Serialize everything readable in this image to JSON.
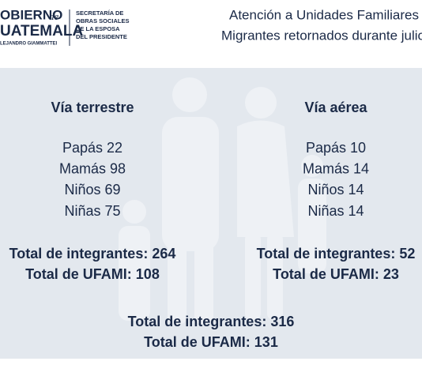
{
  "header": {
    "logo": {
      "line1": "OBIERNO",
      "line1_suffix": "de",
      "line2": "UATEMALA",
      "line3": "LEJANDRO GIAMMATTEI"
    },
    "secretaria": [
      "SECRETARÍA DE",
      "OBRAS SOCIALES",
      "DE LA ESPOSA",
      "DEL PRESIDENTE"
    ],
    "title": [
      "Atención a Unidades Familiares",
      "Migrantes retornados durante julio"
    ]
  },
  "sections": [
    {
      "heading": "Vía terrestre",
      "items": [
        "Papás 22",
        "Mamás 98",
        "Niños 69",
        "Niñas 75"
      ],
      "totals": [
        "Total de integrantes: 264",
        "Total de UFAMI: 108"
      ]
    },
    {
      "heading": "Vía aérea",
      "items": [
        "Papás 10",
        "Mamás 14",
        "Niños 14",
        "Niñas 14"
      ],
      "totals": [
        "Total de integrantes: 52",
        "Total de UFAMI: 23"
      ]
    }
  ],
  "grand_totals": [
    "Total de integrantes: 316",
    "Total de UFAMI: 131"
  ]
}
